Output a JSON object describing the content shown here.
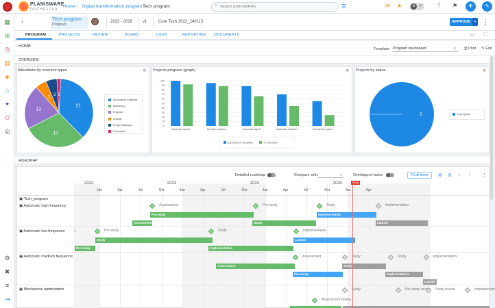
{
  "app": {
    "brand_line1": "PLANISWARE",
    "brand_line2": "ORCHESTRA"
  },
  "breadcrumb": {
    "home": "Home",
    "program": "Digital transformation program",
    "current": "Tech program"
  },
  "search": {
    "placeholder": "Search (Ctrl+Shift+F)"
  },
  "header": {
    "title": "Tech program",
    "type": "Program",
    "period": "2023 - 2026",
    "version": "v1",
    "code": "Core Tech 2022_240116",
    "approve_label": "APPROVE"
  },
  "tabs": [
    "PROGRAM",
    "PROJECTS",
    "REVIEW",
    "BOARD",
    "LOGS",
    "REPORTING",
    "DOCUMENTS"
  ],
  "page": {
    "home": "HOME",
    "template_label": "Template:",
    "template_value": "Program dashboard",
    "print": "Print",
    "edit": "Edit",
    "overview": "OVERVIEW",
    "roadmap": "ROADMAP"
  },
  "panels": {
    "allocations": "Allocations by resource types",
    "progress": "Projects progress (graph)",
    "status": "Projects by status"
  },
  "chart_data": [
    {
      "type": "pie",
      "title": "Allocations by resource types",
      "categories": [
        "Specialized Engineer",
        "Machinery",
        "Engineer",
        "Analyst",
        "Project Manager",
        "Consultant"
      ],
      "values": [
        21,
        17,
        12,
        3,
        3,
        1
      ],
      "colors": [
        "#1e88e5",
        "#66bb6a",
        "#9575cd",
        "#fb8c00",
        "#1a4c8b",
        "#e91e63"
      ]
    },
    {
      "type": "bar",
      "title": "Projects progress (graph)",
      "categories": [
        "Automatic low fre...",
        "Security analysis...",
        "Automatic high fr...",
        "Automatic medium ...",
        "Mechanical optimi..."
      ],
      "series": [
        {
          "name": "Expected % complete",
          "values": [
            100,
            95,
            88,
            70,
            55
          ],
          "color": "#1e88e5"
        },
        {
          "name": "% Complete",
          "values": [
            92,
            88,
            66,
            44,
            24
          ],
          "color": "#66bb6a"
        }
      ],
      "ylim": [
        0,
        100
      ],
      "yticks": [
        0,
        10,
        20,
        30,
        40,
        50,
        60,
        70,
        80,
        90,
        100
      ]
    },
    {
      "type": "pie",
      "title": "Projects by status",
      "categories": [
        "In progress"
      ],
      "values": [
        5
      ],
      "colors": [
        "#1e88e5"
      ]
    }
  ],
  "roadmap": {
    "detailed_label": "Detailed roadmap:",
    "compare_label": "Compare with:",
    "overlap_label": "Overlapped tasks:",
    "fit_label": "Fit all items",
    "today_label": "Today",
    "years": [
      "2022",
      "2023",
      "2024",
      "2025"
    ],
    "months": [
      "Jan",
      "Apr",
      "Jul",
      "Oct",
      "Jan",
      "Apr",
      "Jul",
      "Oct",
      "Jan",
      "Apr",
      "Jul",
      "Oct",
      "Jan",
      "Apr"
    ],
    "root": "Tech_program",
    "rows": [
      "Automatic high frequency",
      "Automatic low frequence",
      "Automatic medium frequence",
      "Mechanical optimization"
    ],
    "row_number": "1",
    "milestones": [
      "Assessment",
      "Pre-study",
      "Study",
      "Implementation",
      "Pre-study",
      "Study",
      "Implementation",
      "Assessment",
      "Study",
      "Study",
      "Implementation",
      "Study",
      "Pre-study review",
      "Study review",
      "Implementation",
      "Assessment review"
    ],
    "bars": [
      "Pre-study",
      "Implementation",
      "Assessment",
      "Study",
      "Launch",
      "Study",
      "Launch",
      "Pre-study",
      "Implementation",
      "Assessment",
      "Study",
      "Pre-study",
      "Implementation",
      "Launch"
    ]
  }
}
